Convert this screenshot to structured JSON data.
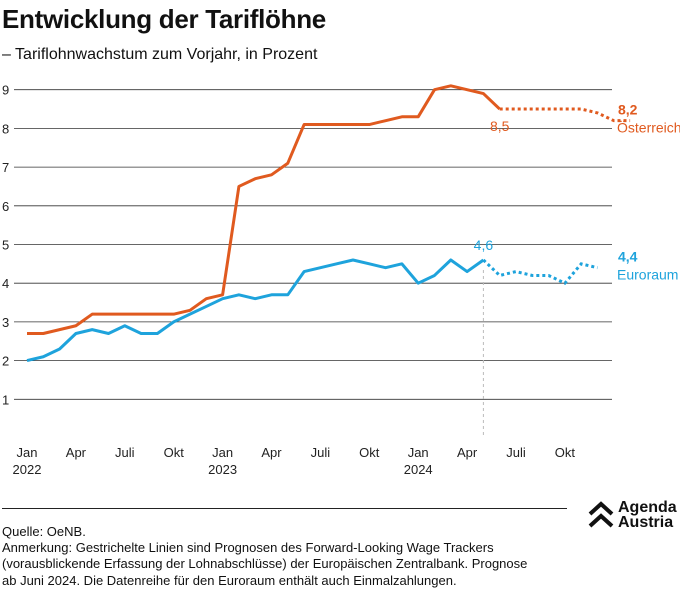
{
  "title": "Entwicklung der Tariflöhne",
  "subtitle": "– Tariflohnwachstum zum Vorjahr, in Prozent",
  "source": "Quelle: OeNB.",
  "note_lines": [
    "Anmerkung: Gestrichelte Linien sind Prognosen des Forward-Looking Wage Trackers",
    "(vorausblickende Erfassung der Lohnabschlüsse) der Europäischen Zentralbank. Prognose",
    "ab Juni 2024. Die Datenreihe für den Euroraum enthält auch Einmalzahlungen."
  ],
  "logo": {
    "line1": "Agenda",
    "line2": "Austria"
  },
  "colors": {
    "austria": "#e05a1f",
    "euro": "#1ea3dc",
    "grid": "#333333",
    "marker": "#bbbbbb"
  },
  "chart_data": {
    "type": "line",
    "x_unit": "month",
    "x_start": "2022-01",
    "ylim": [
      0,
      9
    ],
    "yticks": [
      1,
      2,
      3,
      4,
      5,
      6,
      7,
      8,
      9
    ],
    "grid": true,
    "xticks": [
      {
        "index": 0,
        "label": "Jan",
        "year": "2022"
      },
      {
        "index": 3,
        "label": "Apr",
        "year": ""
      },
      {
        "index": 6,
        "label": "Juli",
        "year": ""
      },
      {
        "index": 9,
        "label": "Okt",
        "year": ""
      },
      {
        "index": 12,
        "label": "Jan",
        "year": "2023"
      },
      {
        "index": 15,
        "label": "Apr",
        "year": ""
      },
      {
        "index": 18,
        "label": "Juli",
        "year": ""
      },
      {
        "index": 21,
        "label": "Okt",
        "year": ""
      },
      {
        "index": 24,
        "label": "Jan",
        "year": "2024"
      },
      {
        "index": 27,
        "label": "Apr",
        "year": ""
      },
      {
        "index": 30,
        "label": "Juli",
        "year": ""
      },
      {
        "index": 33,
        "label": "Okt",
        "year": ""
      }
    ],
    "forecast_start_index": 28,
    "series": [
      {
        "name": "Österreich",
        "color": "#e05a1f",
        "end_label": "8,2",
        "marker_label": "8,5",
        "values": [
          2.7,
          2.7,
          2.8,
          2.9,
          3.2,
          3.2,
          3.2,
          3.2,
          3.2,
          3.2,
          3.3,
          3.6,
          3.7,
          6.5,
          6.7,
          6.8,
          7.1,
          8.1,
          8.1,
          8.1,
          8.1,
          8.1,
          8.2,
          8.3,
          8.3,
          9.0,
          9.1,
          9.0,
          8.9,
          8.5
        ],
        "forecast": [
          8.5,
          8.5,
          8.5,
          8.5,
          8.5,
          8.5,
          8.4,
          8.2,
          8.2
        ]
      },
      {
        "name": "Euroraum",
        "color": "#1ea3dc",
        "end_label": "4,4",
        "marker_label": "4,6",
        "values": [
          2.0,
          2.1,
          2.3,
          2.7,
          2.8,
          2.7,
          2.9,
          2.7,
          2.7,
          3.0,
          3.2,
          3.4,
          3.6,
          3.7,
          3.6,
          3.7,
          3.7,
          4.3,
          4.4,
          4.5,
          4.6,
          4.5,
          4.4,
          4.5,
          4.0,
          4.2,
          4.6,
          4.3,
          4.6
        ],
        "forecast": [
          4.6,
          4.2,
          4.3,
          4.2,
          4.2,
          4.0,
          4.5,
          4.4
        ]
      }
    ]
  }
}
